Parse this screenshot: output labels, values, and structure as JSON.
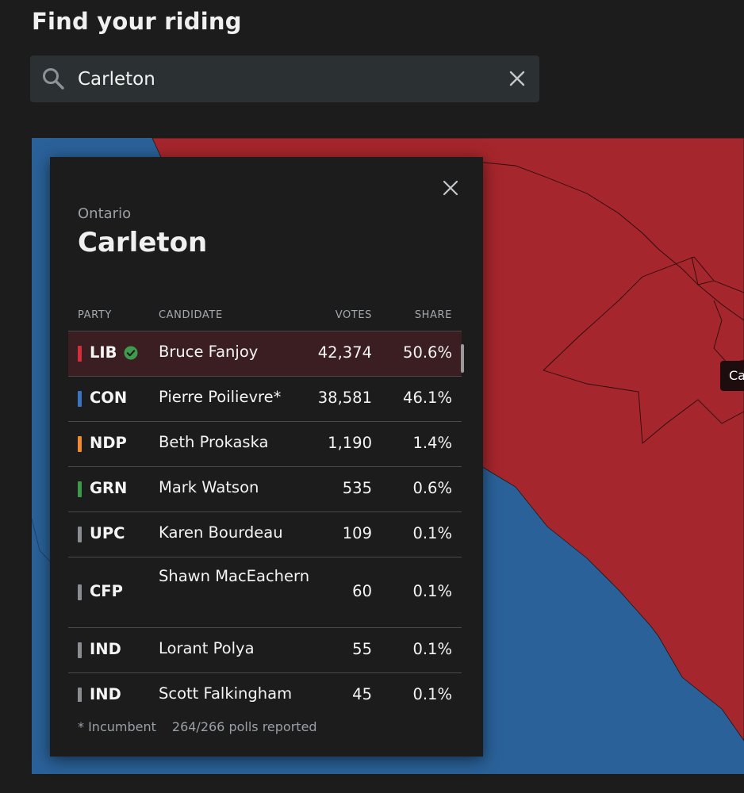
{
  "page": {
    "title": "Find your riding"
  },
  "search": {
    "value": "Carleton",
    "placeholder": ""
  },
  "map": {
    "tooltip_label": "Ca",
    "colors": {
      "liberal": "#a5262c",
      "conservative": "#2a6198"
    }
  },
  "popup": {
    "province": "Ontario",
    "riding": "Carleton",
    "columns": {
      "party": "PARTY",
      "candidate": "CANDIDATE",
      "votes": "VOTES",
      "share": "SHARE"
    },
    "rows": [
      {
        "party": "LIB",
        "candidate": "Bruce Fanjoy",
        "votes": "42,374",
        "share": "50.6%",
        "color": "#d32f3a",
        "winner": true
      },
      {
        "party": "CON",
        "candidate": "Pierre Poilievre*",
        "votes": "38,581",
        "share": "46.1%",
        "color": "#3a74c4",
        "winner": false
      },
      {
        "party": "NDP",
        "candidate": "Beth Prokaska",
        "votes": "1,190",
        "share": "1.4%",
        "color": "#f08a2e",
        "winner": false
      },
      {
        "party": "GRN",
        "candidate": "Mark Watson",
        "votes": "535",
        "share": "0.6%",
        "color": "#3d9a47",
        "winner": false
      },
      {
        "party": "UPC",
        "candidate": "Karen Bourdeau",
        "votes": "109",
        "share": "0.1%",
        "color": "#8a8e93",
        "winner": false
      },
      {
        "party": "CFP",
        "candidate": "Shawn MacEachern",
        "votes": "60",
        "share": "0.1%",
        "color": "#8a8e93",
        "winner": false
      },
      {
        "party": "IND",
        "candidate": "Lorant Polya",
        "votes": "55",
        "share": "0.1%",
        "color": "#8a8e93",
        "winner": false
      },
      {
        "party": "IND",
        "candidate": "Scott Falkingham",
        "votes": "45",
        "share": "0.1%",
        "color": "#8a8e93",
        "winner": false
      }
    ],
    "footer": {
      "incumbent_note": "* Incumbent",
      "polls_reported": "264/266 polls reported"
    }
  },
  "icons": {
    "search": "search-icon",
    "clear": "close-icon",
    "popup_close": "close-icon",
    "winner": "check-circle-icon"
  }
}
